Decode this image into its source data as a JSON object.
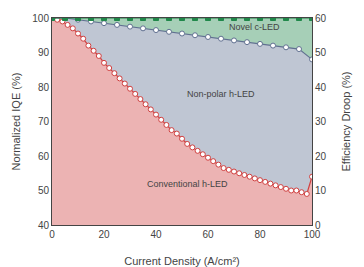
{
  "chart_data": {
    "type": "line",
    "xlabel": "Current Density (A/cm²)",
    "ylabel": "Normalized IQE (%)",
    "y2label": "Efficiency Droop (%)",
    "xlim": [
      0,
      100
    ],
    "xticks": [
      0,
      20,
      40,
      60,
      80,
      100
    ],
    "ylim": [
      40,
      100
    ],
    "yticks": [
      40,
      50,
      60,
      70,
      80,
      90,
      100
    ],
    "y2lim": [
      0,
      60
    ],
    "y2ticks": [
      0,
      10,
      20,
      30,
      40,
      50,
      60
    ],
    "grid": false,
    "series": [
      {
        "name": "Conventional h-LED",
        "color": "#d04040",
        "marker": "circle",
        "x": [
          0,
          2,
          4,
          6,
          8,
          10,
          12,
          14,
          16,
          18,
          20,
          22,
          24,
          26,
          28,
          30,
          32,
          34,
          36,
          38,
          40,
          42,
          44,
          46,
          48,
          50,
          52,
          54,
          56,
          58,
          60,
          62,
          64,
          66,
          68,
          70,
          72,
          74,
          76,
          78,
          80,
          82,
          84,
          86,
          88,
          90,
          92,
          94,
          96,
          98,
          100
        ],
        "values": [
          100,
          99.5,
          99,
          98,
          97,
          95.5,
          94,
          92,
          90.5,
          89,
          87,
          85.5,
          84,
          82.5,
          81,
          79.5,
          78,
          76.5,
          75,
          73.5,
          72,
          70.5,
          69,
          67.5,
          66.5,
          65,
          63.5,
          62.5,
          61.5,
          60.5,
          59.5,
          58.5,
          57.5,
          56.5,
          56,
          55.5,
          55,
          54.5,
          54,
          53.5,
          53,
          52.5,
          52,
          51.5,
          51,
          50.5,
          50,
          50,
          49.5,
          49,
          54
        ]
      },
      {
        "name": "Non-polar h-LED",
        "color": "#607090",
        "marker": "circle",
        "x": [
          0,
          5,
          10,
          15,
          20,
          25,
          30,
          35,
          40,
          45,
          50,
          55,
          60,
          65,
          70,
          75,
          80,
          85,
          90,
          95,
          100
        ],
        "values": [
          100,
          100,
          99.5,
          99,
          98.5,
          98,
          97.5,
          97,
          96.5,
          96,
          95.5,
          95,
          94.5,
          94,
          93.5,
          93,
          92.5,
          92,
          91.5,
          91,
          88
        ]
      },
      {
        "name": "Novel c-LED",
        "color": "#20884a",
        "marker": "square",
        "x": [
          0,
          5,
          10,
          15,
          20,
          25,
          30,
          35,
          40,
          45,
          50,
          55,
          60,
          65,
          70,
          75,
          80,
          85,
          90,
          95,
          100
        ],
        "values": [
          100,
          100,
          100,
          100,
          100,
          100,
          100,
          100,
          100,
          100,
          100,
          100,
          100,
          100,
          100,
          100,
          100,
          100,
          100,
          100,
          100
        ]
      }
    ],
    "annotations": [
      {
        "text": "Conventional h-LED",
        "x": 52,
        "y": 52
      },
      {
        "text": "Non-polar h-LED",
        "x": 65,
        "y": 78
      },
      {
        "text": "Novel c-LED",
        "x": 78,
        "y": 97.5
      }
    ]
  }
}
